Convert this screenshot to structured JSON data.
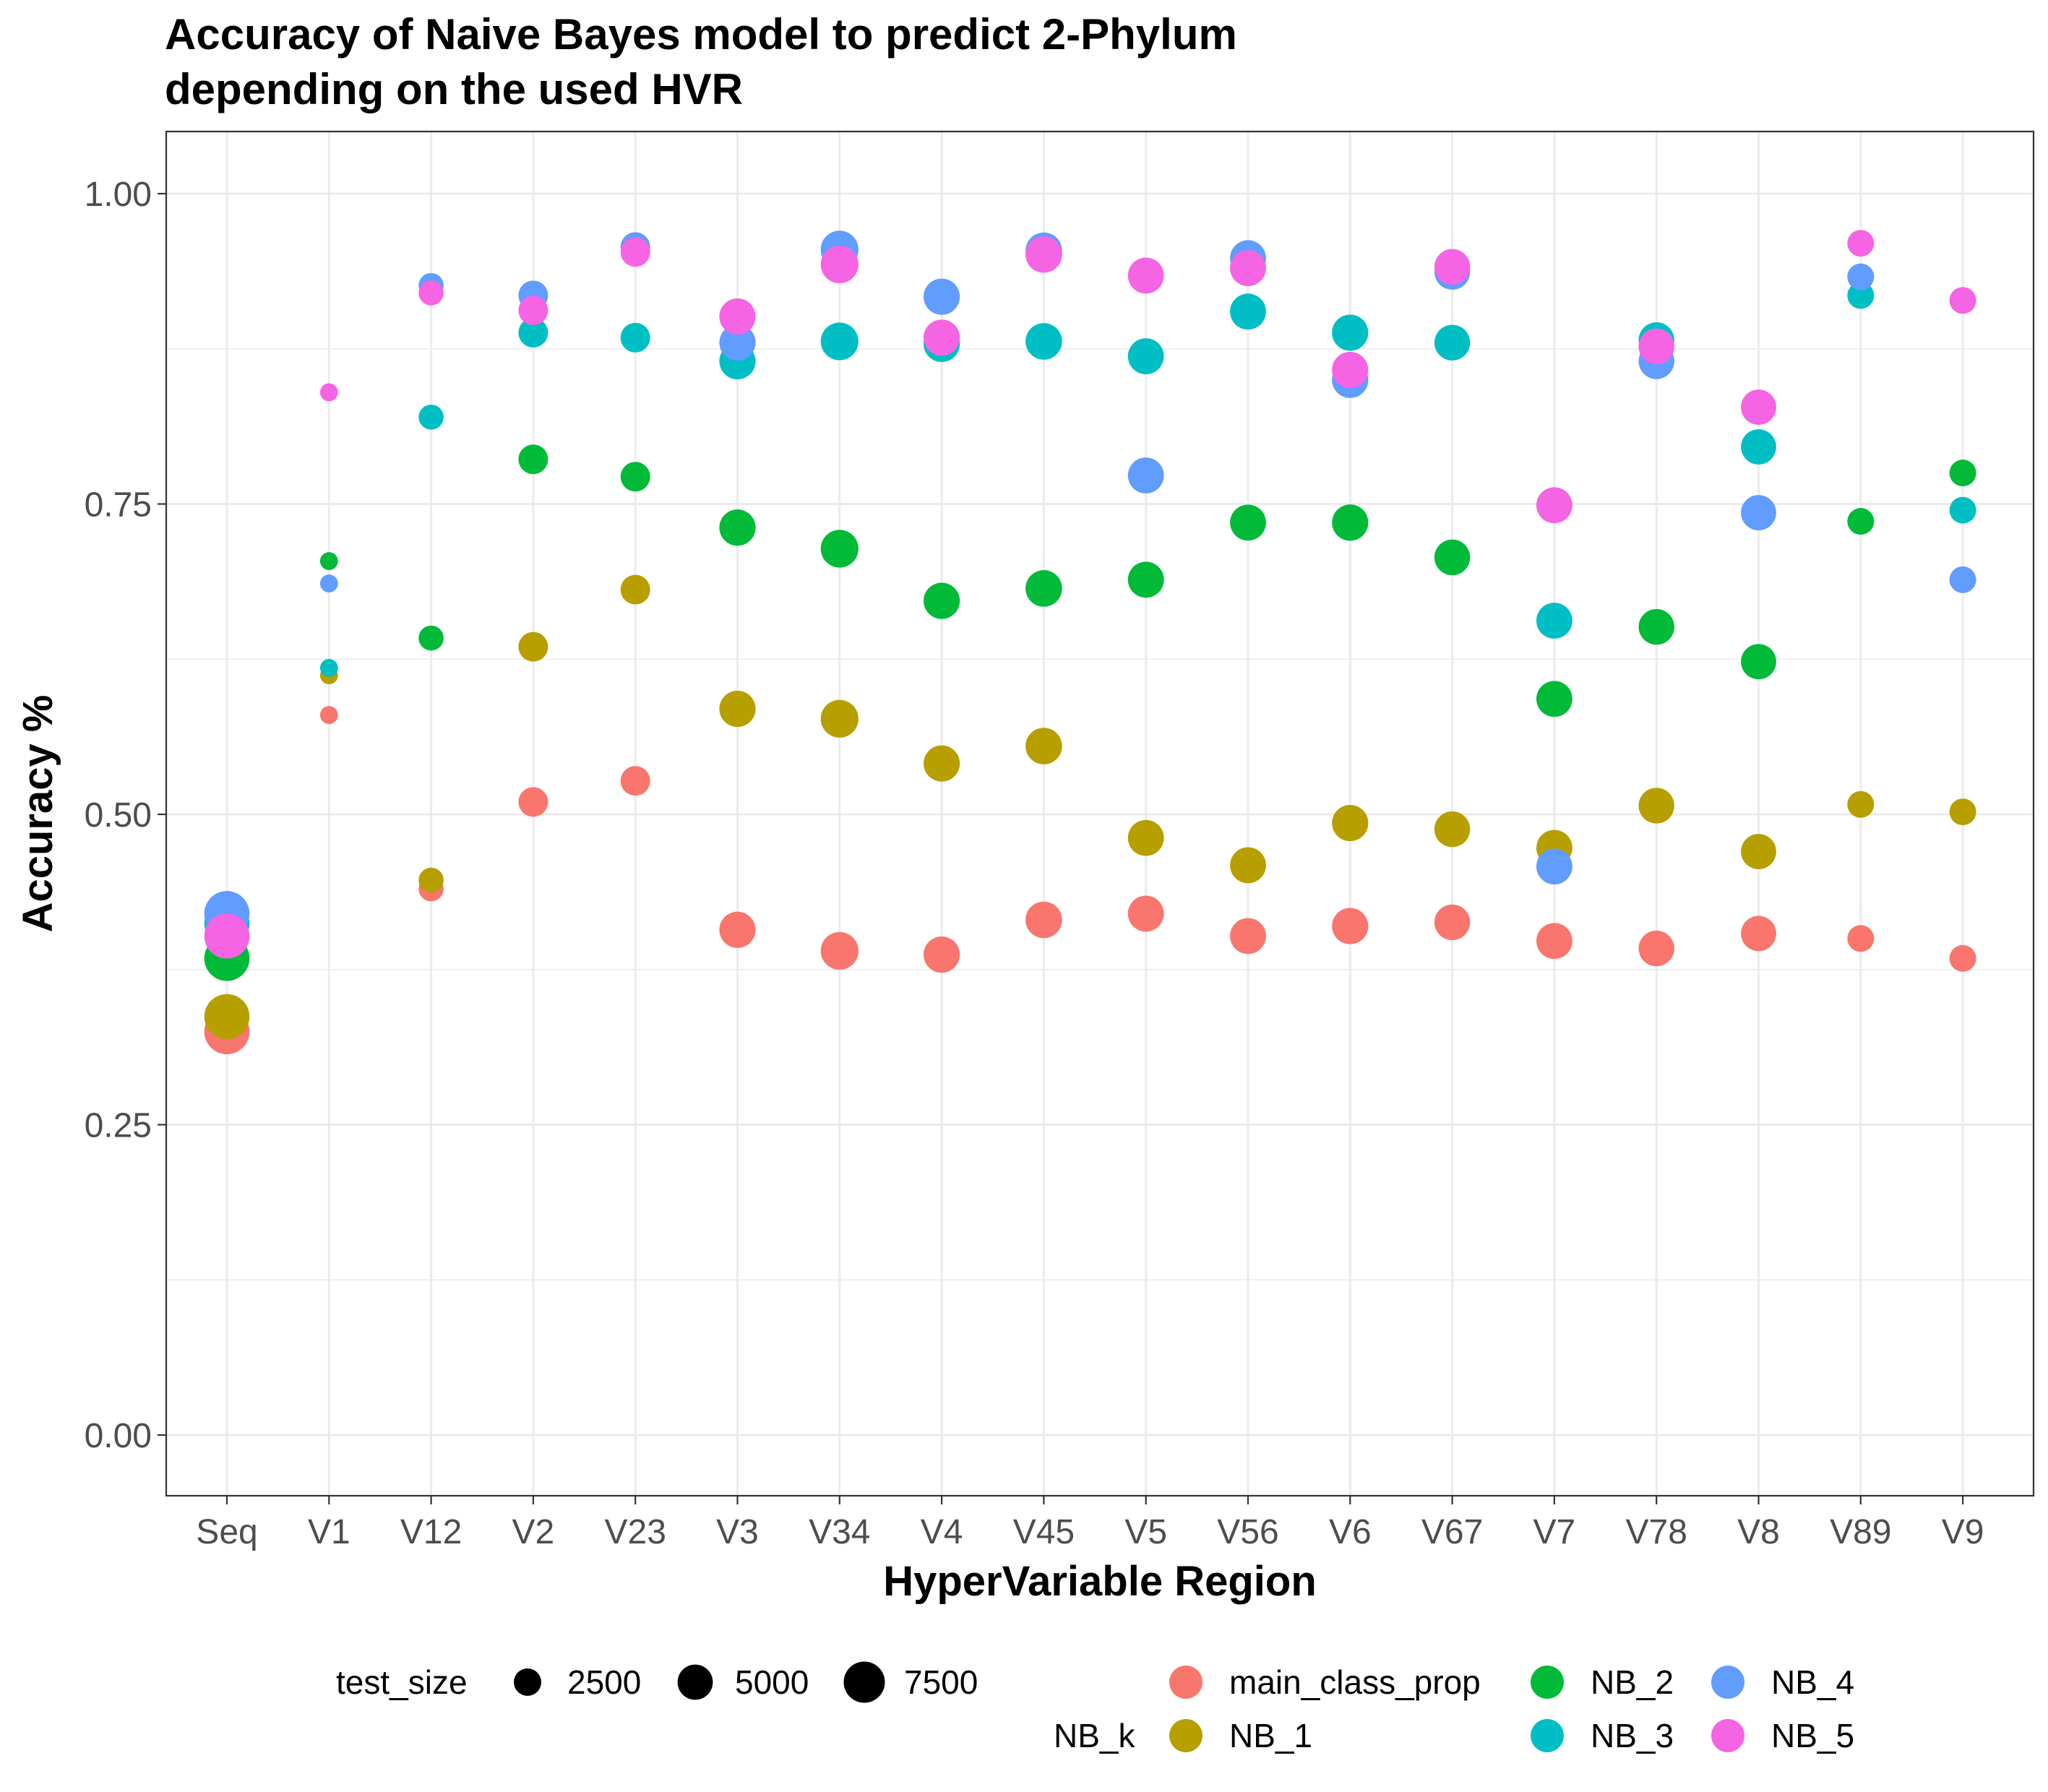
{
  "chart_data": {
    "type": "scatter",
    "title": "Accuracy of Naive Bayes model to predict 2-Phylum",
    "subtitle": "depending on the used HVR",
    "xlabel": "HyperVariable Region",
    "ylabel": "Accuracy %",
    "ylim": [
      -0.05,
      1.05
    ],
    "yticks": [
      0.0,
      0.25,
      0.5,
      0.75,
      1.0
    ],
    "ytick_labels": [
      "0.00",
      "0.25",
      "0.50",
      "0.75",
      "1.00"
    ],
    "grid": true,
    "categories": [
      "Seq",
      "V1",
      "V12",
      "V2",
      "V23",
      "V3",
      "V34",
      "V4",
      "V45",
      "V5",
      "V56",
      "V6",
      "V67",
      "V7",
      "V78",
      "V8",
      "V89",
      "V9"
    ],
    "test_size": [
      9500,
      600,
      1900,
      3100,
      3100,
      5400,
      6000,
      5400,
      5500,
      5300,
      5300,
      5400,
      5200,
      5300,
      5200,
      5000,
      2300,
      2300
    ],
    "series": [
      {
        "name": "main_class_prop",
        "color": "#F8766D",
        "values": [
          0.325,
          0.58,
          0.44,
          0.51,
          0.527,
          0.407,
          0.39,
          0.387,
          0.415,
          0.42,
          0.402,
          0.41,
          0.413,
          0.398,
          0.392,
          0.404,
          0.4,
          0.384
        ]
      },
      {
        "name": "NB_1",
        "color": "#B79F00",
        "values": [
          0.337,
          0.612,
          0.447,
          0.635,
          0.681,
          0.585,
          0.577,
          0.541,
          0.555,
          0.481,
          0.459,
          0.493,
          0.488,
          0.473,
          0.507,
          0.47,
          0.508,
          0.502
        ]
      },
      {
        "name": "NB_2",
        "color": "#00BA38",
        "values": [
          0.384,
          0.704,
          0.642,
          0.786,
          0.772,
          0.731,
          0.714,
          0.672,
          0.682,
          0.689,
          0.735,
          0.735,
          0.707,
          0.593,
          0.651,
          0.623,
          0.736,
          0.775
        ]
      },
      {
        "name": "NB_3",
        "color": "#00BFC4",
        "values": [
          0.412,
          0.618,
          0.82,
          0.888,
          0.884,
          0.865,
          0.881,
          0.879,
          0.881,
          0.869,
          0.905,
          0.888,
          0.88,
          0.656,
          0.882,
          0.796,
          0.918,
          0.745
        ]
      },
      {
        "name": "NB_4",
        "color": "#619CFF",
        "values": [
          0.42,
          0.686,
          0.926,
          0.918,
          0.957,
          0.88,
          0.955,
          0.917,
          0.954,
          0.773,
          0.948,
          0.85,
          0.937,
          0.458,
          0.865,
          0.743,
          0.933,
          0.689
        ]
      },
      {
        "name": "NB_5",
        "color": "#F564E3",
        "values": [
          0.402,
          0.84,
          0.92,
          0.906,
          0.953,
          0.901,
          0.943,
          0.884,
          0.951,
          0.934,
          0.94,
          0.858,
          0.941,
          0.749,
          0.877,
          0.828,
          0.96,
          0.914
        ]
      }
    ],
    "legend_position": "bottom",
    "legend": {
      "size_title": "test_size",
      "size_entries": [
        "2500",
        "5000",
        "7500"
      ],
      "size_values": [
        2500,
        5000,
        7500
      ],
      "color_title": "NB_k"
    }
  }
}
